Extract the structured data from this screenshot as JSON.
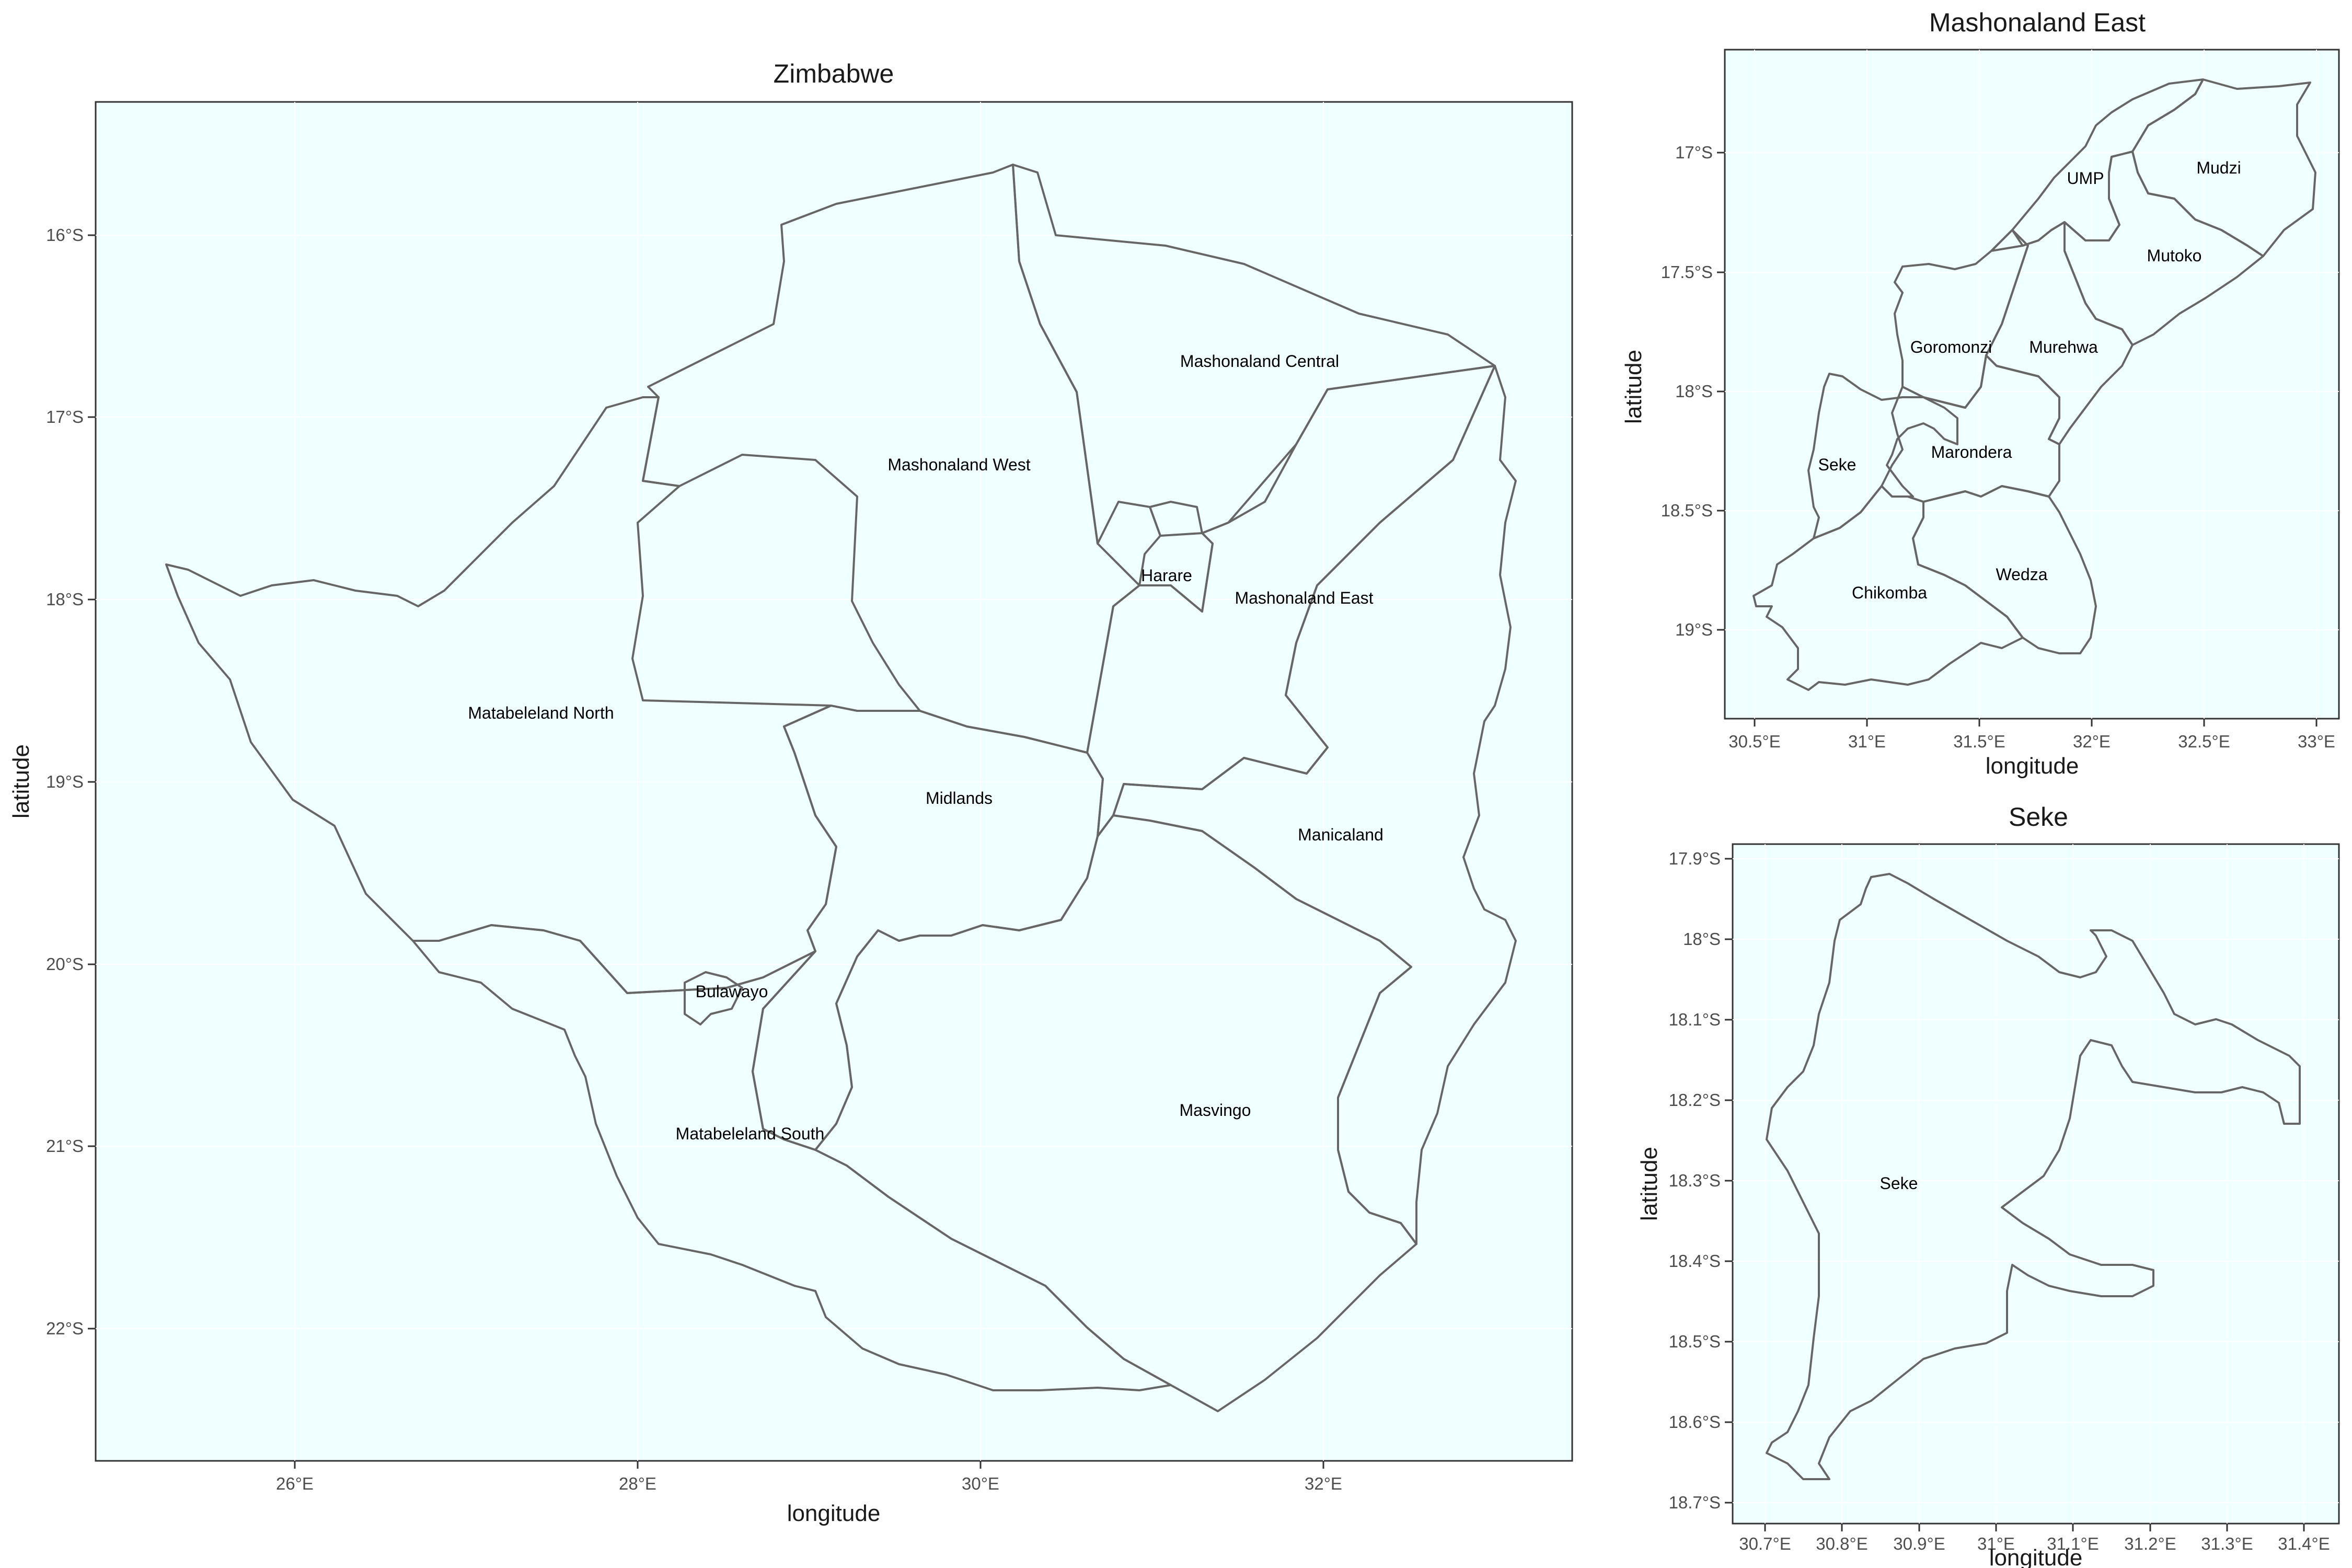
{
  "colors": {
    "panel_background": "#f0ffff",
    "base_fill": "#fff68f",
    "highlight_fill": "#eee685",
    "selected_fill": "#cdc673",
    "border": "#666666"
  },
  "panels": [
    {
      "id": "zimbabwe",
      "title": "Zimbabwe",
      "xlabel": "longitude",
      "ylabel": "latitude",
      "xticks": [
        "26°E",
        "28°E",
        "30°E",
        "32°E"
      ],
      "yticks": [
        "16°S",
        "17°S",
        "18°S",
        "19°S",
        "20°S",
        "21°S",
        "22°S"
      ],
      "regions": [
        {
          "name": "Mashonaland Central"
        },
        {
          "name": "Mashonaland West"
        },
        {
          "name": "Harare"
        },
        {
          "name": "Mashonaland East"
        },
        {
          "name": "Matabeleland North"
        },
        {
          "name": "Midlands"
        },
        {
          "name": "Manicaland"
        },
        {
          "name": "Bulawayo"
        },
        {
          "name": "Masvingo"
        },
        {
          "name": "Matabeleland South"
        }
      ]
    },
    {
      "id": "mashonaland-east",
      "title": "Mashonaland East",
      "xlabel": "longitude",
      "ylabel": "latitude",
      "xticks": [
        "30.5°E",
        "31°E",
        "31.5°E",
        "32°E",
        "32.5°E",
        "33°E"
      ],
      "yticks": [
        "17°S",
        "17.5°S",
        "18°S",
        "18.5°S",
        "19°S"
      ],
      "regions": [
        {
          "name": "UMP"
        },
        {
          "name": "Mudzi"
        },
        {
          "name": "Mutoko"
        },
        {
          "name": "Goromonzi"
        },
        {
          "name": "Murehwa"
        },
        {
          "name": "Seke"
        },
        {
          "name": "Marondera"
        },
        {
          "name": "Chikomba"
        },
        {
          "name": "Wedza"
        }
      ]
    },
    {
      "id": "seke",
      "title": "Seke",
      "xlabel": "longitude",
      "ylabel": "latitude",
      "xticks": [
        "30.7°E",
        "30.8°E",
        "30.9°E",
        "31°E",
        "31.1°E",
        "31.2°E",
        "31.3°E",
        "31.4°E"
      ],
      "yticks": [
        "17.9°S",
        "18°S",
        "18.1°S",
        "18.2°S",
        "18.3°S",
        "18.4°S",
        "18.5°S",
        "18.6°S",
        "18.7°S"
      ],
      "regions": [
        {
          "name": "Seke"
        }
      ]
    }
  ]
}
